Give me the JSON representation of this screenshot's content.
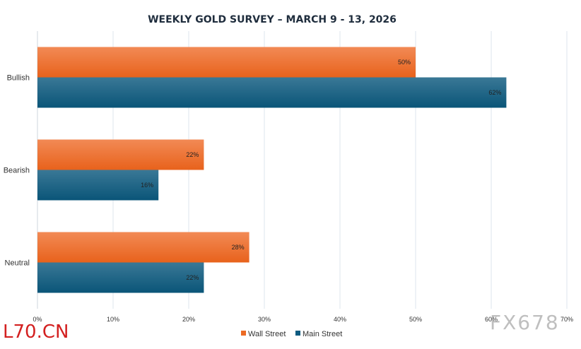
{
  "chart_data": {
    "type": "bar",
    "orientation": "horizontal",
    "title": "WEEKLY GOLD SURVEY – MARCH 9 - 13, 2026",
    "categories": [
      "Bullish",
      "Bearish",
      "Neutral"
    ],
    "series": [
      {
        "name": "Wall Street",
        "values": [
          50,
          22,
          28
        ],
        "labels": [
          "50%",
          "22%",
          "28%"
        ]
      },
      {
        "name": "Main Street",
        "values": [
          62,
          16,
          22
        ],
        "labels": [
          "62%",
          "16%",
          "22%"
        ]
      }
    ],
    "xlim": [
      0,
      70
    ],
    "xticks": [
      "0%",
      "10%",
      "20%",
      "30%",
      "40%",
      "50%",
      "60%",
      "70%"
    ],
    "grid": true,
    "legend": "bottom",
    "colors": {
      "Wall Street": "#ec6a24",
      "Main Street": "#0d5b80"
    }
  },
  "watermarks": {
    "left": "L70.CN",
    "right": "FX678"
  }
}
